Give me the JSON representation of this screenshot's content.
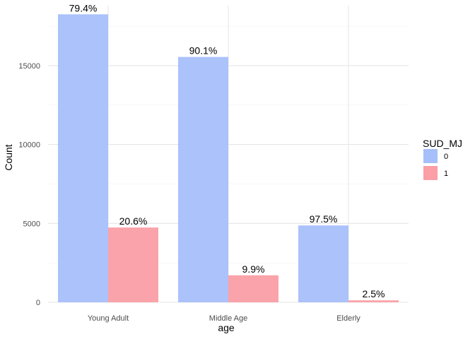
{
  "chart_data": {
    "type": "bar",
    "title": "",
    "xlabel": "age",
    "ylabel": "Count",
    "categories": [
      "Young Adult",
      "Middle Age",
      "Elderly"
    ],
    "ylim": [
      0,
      18800
    ],
    "yticks": [
      0,
      5000,
      10000,
      15000
    ],
    "ytick_labels": [
      "0",
      "5000",
      "10000",
      "15000"
    ],
    "grid": true,
    "legend": {
      "title": "SUD_MJ",
      "position": "right"
    },
    "series": [
      {
        "name": "0",
        "color": "#a6bffa",
        "values": [
          18250,
          15550,
          4870
        ],
        "labels": [
          "79.4%",
          "90.1%",
          "97.5%"
        ]
      },
      {
        "name": "1",
        "color": "#fb9ea5",
        "values": [
          4740,
          1710,
          125
        ],
        "labels": [
          "20.6%",
          "9.9%",
          "2.5%"
        ]
      }
    ]
  }
}
